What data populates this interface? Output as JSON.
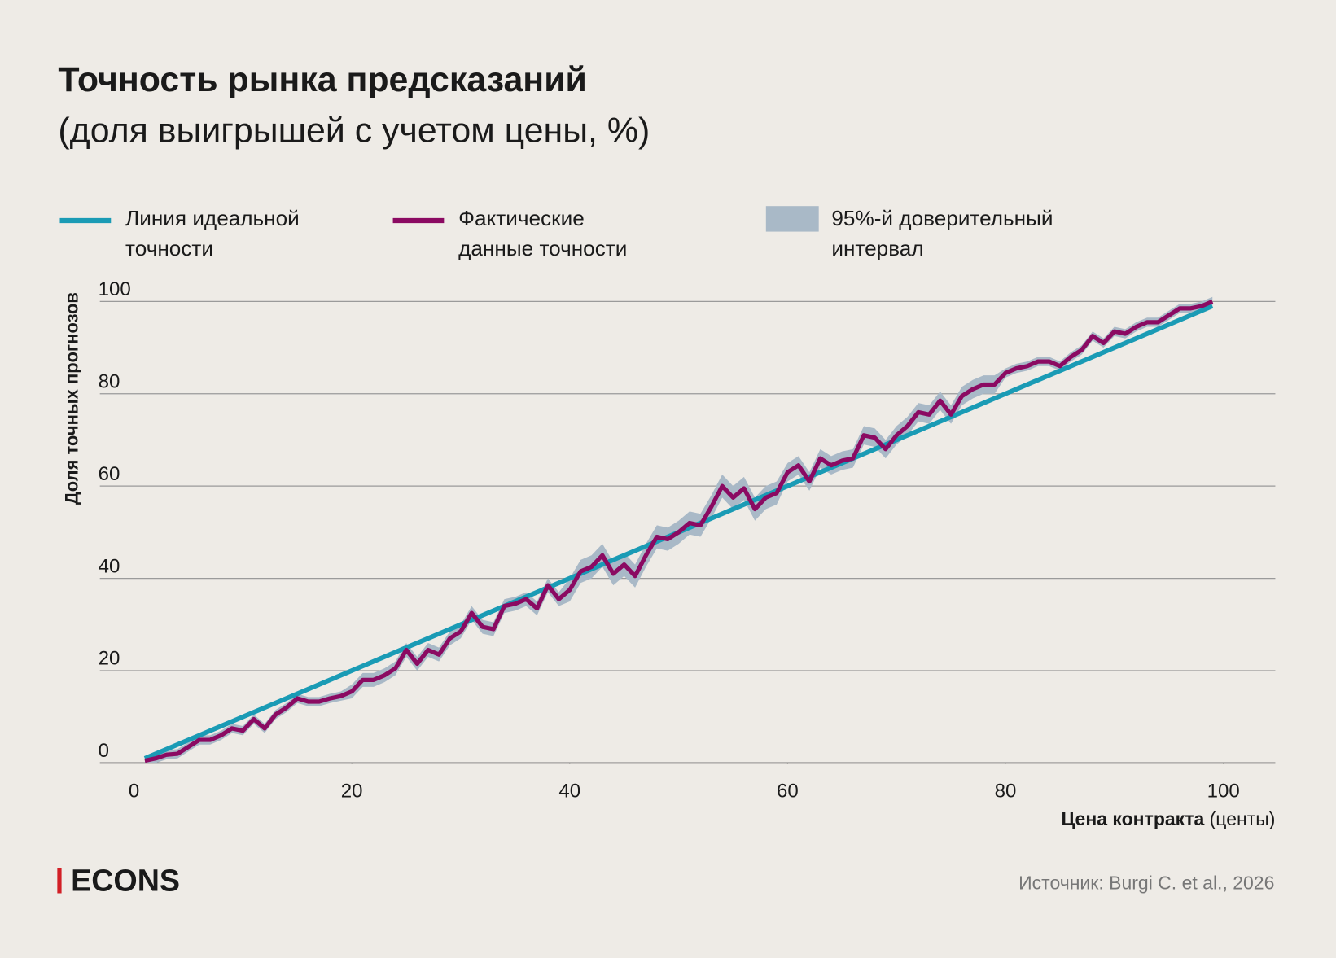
{
  "chart_data": {
    "type": "line",
    "title": "Точность рынка предсказаний",
    "subtitle": "(доля выигрышей с учетом цены, %)",
    "ylabel": "Доля точных прогнозов",
    "xlabel": {
      "bold": "Цена контракта",
      "rest": "(центы)"
    },
    "source": "Источник: Burgi C. et al., 2026",
    "logo": "ECONS",
    "xlim": [
      0,
      100
    ],
    "xticks": [
      0,
      20,
      40,
      60,
      80,
      100
    ],
    "ylim": [
      0,
      100
    ],
    "yticks": [
      0,
      20,
      40,
      60,
      80,
      100
    ],
    "grid": true,
    "series": [
      {
        "name": "Линия идеальной точности",
        "color": "#1a9bb5",
        "x": [
          1,
          99
        ],
        "values": [
          1,
          99
        ]
      },
      {
        "name": "Фактические данные точности",
        "color": "#8b0a62",
        "x": [
          1,
          2,
          3,
          4,
          5,
          6,
          7,
          8,
          9,
          10,
          11,
          12,
          13,
          14,
          15,
          16,
          17,
          18,
          19,
          20,
          21,
          22,
          23,
          24,
          25,
          26,
          27,
          28,
          29,
          30,
          31,
          32,
          33,
          34,
          35,
          36,
          37,
          38,
          39,
          40,
          41,
          42,
          43,
          44,
          45,
          46,
          47,
          48,
          49,
          50,
          51,
          52,
          53,
          54,
          55,
          56,
          57,
          58,
          59,
          60,
          61,
          62,
          63,
          64,
          65,
          66,
          67,
          68,
          69,
          70,
          71,
          72,
          73,
          74,
          75,
          76,
          77,
          78,
          79,
          80,
          81,
          82,
          83,
          84,
          85,
          86,
          87,
          88,
          89,
          90,
          91,
          92,
          93,
          94,
          95,
          96,
          97,
          98,
          99
        ],
        "values": [
          0.5,
          1,
          1.8,
          2,
          3.5,
          5,
          5,
          6,
          7.5,
          7,
          9.5,
          7.5,
          10.5,
          12,
          14,
          13.3,
          13.3,
          14,
          14.5,
          15.5,
          18,
          18,
          19,
          20.5,
          24.5,
          21.5,
          24.5,
          23.5,
          27,
          28.5,
          32.5,
          29.5,
          29,
          34,
          34.5,
          35.5,
          33.5,
          38.5,
          35.5,
          37.5,
          41.5,
          42.5,
          45,
          41,
          43,
          40.5,
          45,
          49,
          48.5,
          50,
          52,
          51.5,
          55.5,
          60,
          57.5,
          59.5,
          55,
          57.5,
          58.5,
          63,
          64.5,
          61,
          66,
          64.5,
          65.5,
          66,
          71,
          70.5,
          68,
          71,
          73,
          76,
          75.5,
          78.5,
          75.5,
          79.5,
          81,
          82,
          82,
          84.5,
          85.5,
          86,
          87,
          87,
          86,
          88,
          89.5,
          92.5,
          91,
          93.5,
          93,
          94.5,
          95.5,
          95.5,
          97,
          98.5,
          98.5,
          99,
          100
        ]
      },
      {
        "name": "95%-й доверительный интервал",
        "color": "#a9b9c7",
        "lower": [
          0,
          0,
          0.8,
          1,
          2.5,
          4,
          4,
          5,
          6.5,
          6,
          8.5,
          6.5,
          9.5,
          11,
          13,
          12.3,
          12.3,
          13,
          13.5,
          14,
          16.5,
          16.5,
          17.5,
          19,
          23,
          20,
          23,
          22,
          25.5,
          27,
          31,
          28,
          27.5,
          32.5,
          33,
          34,
          32,
          37,
          34,
          35,
          39,
          40,
          42.5,
          38.5,
          40.5,
          38,
          42.5,
          46.5,
          46,
          47.5,
          49.5,
          49,
          53,
          57.5,
          55,
          57,
          52.5,
          55,
          56,
          61,
          62.5,
          59,
          64,
          62.5,
          63.5,
          64,
          69,
          68.5,
          66,
          69,
          71,
          74,
          73.5,
          76.5,
          73.5,
          77.5,
          79,
          80,
          80,
          83.5,
          84.5,
          85,
          86,
          86,
          85,
          87,
          88.5,
          91.5,
          90,
          92.5,
          92,
          93.5,
          94.5,
          94.5,
          96,
          97.5,
          97.5,
          98,
          99
        ],
        "upper": [
          1.5,
          2,
          2.8,
          3,
          4.5,
          6,
          6,
          7,
          8.5,
          8,
          10.5,
          8.5,
          11.5,
          13,
          15,
          14.3,
          14.3,
          15,
          15.5,
          17,
          19.5,
          19.5,
          20.5,
          22,
          26,
          23,
          26,
          25,
          28.5,
          30,
          34,
          31,
          30.5,
          35.5,
          36,
          37,
          35,
          40,
          37,
          40,
          44,
          45,
          47.5,
          43.5,
          45.5,
          43,
          47.5,
          51.5,
          51,
          52.5,
          54.5,
          54,
          58,
          62.5,
          60,
          62,
          57.5,
          60,
          61,
          65,
          66.5,
          63,
          68,
          66.5,
          67.5,
          68,
          73,
          72.5,
          70,
          73,
          75,
          78,
          77.5,
          80.5,
          77.5,
          81.5,
          83,
          84,
          84,
          85.5,
          86.5,
          87,
          88,
          88,
          87,
          89,
          90.5,
          93.5,
          92,
          94.5,
          94,
          95.5,
          96.5,
          96.5,
          98,
          99.5,
          99.5,
          100,
          101
        ]
      }
    ]
  }
}
